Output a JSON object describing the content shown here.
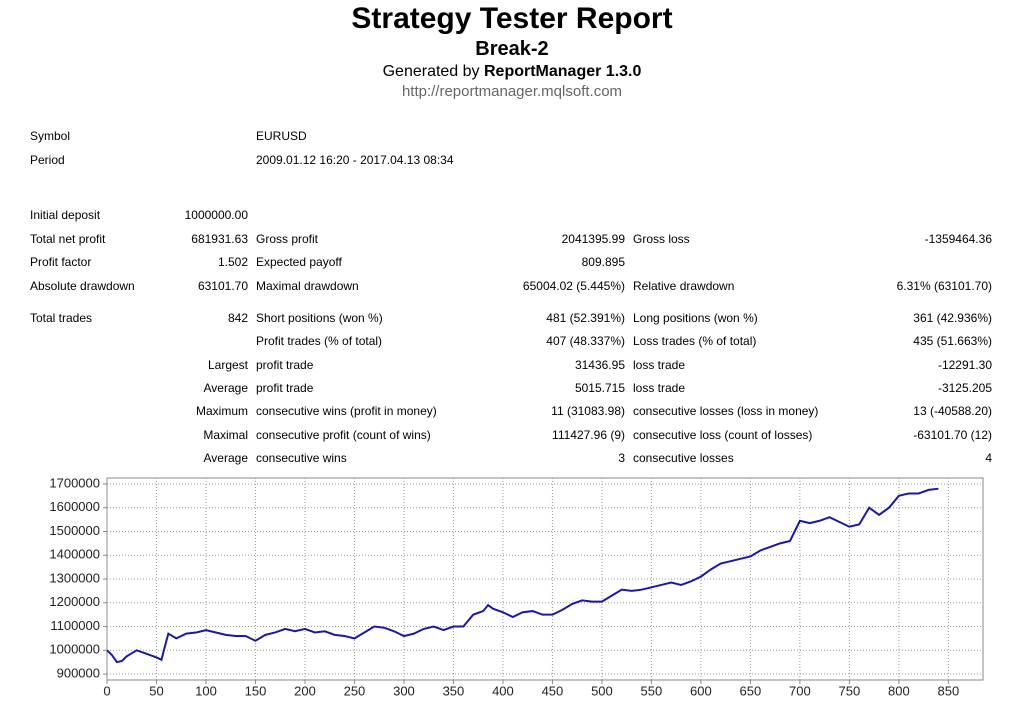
{
  "header": {
    "title": "Strategy Tester Report",
    "subtitle": "Break-2",
    "generated_prefix": "Generated by",
    "generator": "ReportManager 1.3.0",
    "url": "http://reportmanager.mqlsoft.com"
  },
  "info": [
    {
      "label": "Symbol",
      "value": "EURUSD"
    },
    {
      "label": "Period",
      "value": "2009.01.12 16:20 - 2017.04.13 08:34"
    }
  ],
  "sections": [
    [
      {
        "label": "Initial deposit",
        "value": "1000000.00"
      },
      {
        "label": "Total net profit",
        "value": "681931.63",
        "label2": "Gross profit",
        "value2": "2041395.99",
        "label3": "Gross loss",
        "value3": "-1359464.36"
      },
      {
        "label": "Profit factor",
        "value": "1.502",
        "label2": "Expected payoff",
        "value2": "809.895"
      },
      {
        "label": "Absolute drawdown",
        "value": "63101.70",
        "label2": "Maximal drawdown",
        "value2": "65004.02 (5.445%)",
        "label3": "Relative drawdown",
        "value3": "6.31% (63101.70)"
      }
    ],
    [
      {
        "label": "Total trades",
        "value": "842",
        "label2": "Short positions (won %)",
        "value2": "481 (52.391%)",
        "label3": "Long positions (won %)",
        "value3": "361 (42.936%)"
      },
      {
        "label2": "Profit trades (% of total)",
        "value2": "407 (48.337%)",
        "label3": "Loss trades (% of total)",
        "value3": "435 (51.663%)"
      },
      {
        "value": "Largest",
        "label2": "profit trade",
        "value2": "31436.95",
        "label3": "loss trade",
        "value3": "-12291.30"
      },
      {
        "value": "Average",
        "label2": "profit trade",
        "value2": "5015.715",
        "label3": "loss trade",
        "value3": "-3125.205"
      },
      {
        "value": "Maximum",
        "label2": "consecutive wins (profit in money)",
        "value2": "11 (31083.98)",
        "label3": "consecutive losses (loss in money)",
        "value3": "13 (-40588.20)"
      },
      {
        "value": "Maximal",
        "label2": "consecutive profit (count of wins)",
        "value2": "111427.96 (9)",
        "label3": "consecutive loss (count of losses)",
        "value3": "-63101.70 (12)"
      },
      {
        "value": "Average",
        "label2": "consecutive wins",
        "value2": "3",
        "label3": "consecutive losses",
        "value3": "4"
      }
    ]
  ],
  "chart_data": {
    "type": "line",
    "color": "#1a1aa0",
    "grid": true,
    "x": [
      0,
      5,
      10,
      15,
      20,
      30,
      40,
      50,
      55,
      60,
      62,
      70,
      80,
      90,
      100,
      110,
      120,
      130,
      140,
      150,
      160,
      170,
      180,
      190,
      200,
      210,
      220,
      230,
      240,
      250,
      260,
      270,
      280,
      290,
      300,
      310,
      320,
      330,
      340,
      350,
      360,
      370,
      380,
      385,
      390,
      400,
      410,
      420,
      430,
      440,
      450,
      460,
      470,
      480,
      490,
      500,
      510,
      520,
      530,
      540,
      550,
      560,
      570,
      580,
      590,
      600,
      610,
      620,
      630,
      640,
      650,
      660,
      670,
      680,
      690,
      700,
      710,
      720,
      730,
      740,
      750,
      760,
      770,
      780,
      790,
      800,
      810,
      820,
      830,
      840
    ],
    "values": [
      1000000,
      980000,
      950000,
      955000,
      975000,
      1000000,
      985000,
      970000,
      960000,
      1040000,
      1070000,
      1050000,
      1070000,
      1075000,
      1085000,
      1075000,
      1065000,
      1060000,
      1060000,
      1040000,
      1065000,
      1075000,
      1090000,
      1080000,
      1090000,
      1075000,
      1080000,
      1065000,
      1060000,
      1050000,
      1075000,
      1100000,
      1095000,
      1080000,
      1060000,
      1070000,
      1090000,
      1100000,
      1085000,
      1100000,
      1100000,
      1150000,
      1165000,
      1190000,
      1175000,
      1160000,
      1140000,
      1160000,
      1165000,
      1150000,
      1150000,
      1170000,
      1195000,
      1210000,
      1205000,
      1205000,
      1230000,
      1255000,
      1250000,
      1255000,
      1265000,
      1275000,
      1285000,
      1275000,
      1290000,
      1310000,
      1340000,
      1365000,
      1375000,
      1385000,
      1395000,
      1420000,
      1435000,
      1450000,
      1460000,
      1545000,
      1535000,
      1545000,
      1560000,
      1540000,
      1520000,
      1530000,
      1600000,
      1570000,
      1600000,
      1650000,
      1660000,
      1660000,
      1675000,
      1680000
    ],
    "xlim": [
      0,
      885
    ],
    "xticks": [
      0,
      50,
      100,
      150,
      200,
      250,
      300,
      350,
      400,
      450,
      500,
      550,
      600,
      650,
      700,
      750,
      800,
      850
    ],
    "ylim": [
      875000,
      1725000
    ],
    "yticks": [
      900000,
      1000000,
      1100000,
      1200000,
      1300000,
      1400000,
      1500000,
      1600000,
      1700000
    ]
  }
}
